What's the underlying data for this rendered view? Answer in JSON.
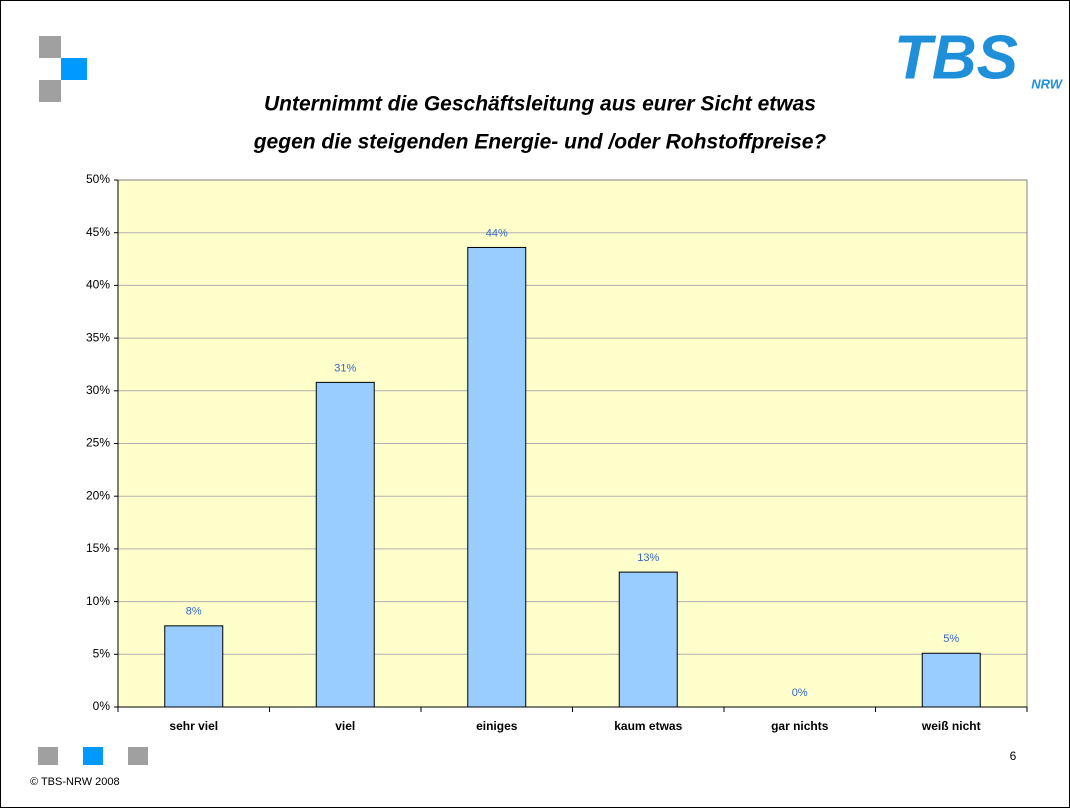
{
  "chart_data": {
    "type": "bar",
    "title": [
      "Unternimmt die Geschäftsleitung aus eurer Sicht etwas",
      "gegen die steigenden Energie- und /oder Rohstoffpreise?"
    ],
    "categories": [
      "sehr viel",
      "viel",
      "einiges",
      "kaum etwas",
      "gar nichts",
      "weiß nicht"
    ],
    "values": [
      7.7,
      30.8,
      43.6,
      12.8,
      0,
      5.1
    ],
    "value_labels": [
      "8%",
      "31%",
      "44%",
      "13%",
      "0%",
      "5%"
    ],
    "color": "#99ccff",
    "ylim": [
      0,
      50
    ],
    "yticks": [
      {
        "value": 0,
        "label": "0%"
      },
      {
        "value": 5,
        "label": "5%"
      },
      {
        "value": 10,
        "label": "10%"
      },
      {
        "value": 15,
        "label": "15%"
      },
      {
        "value": 20,
        "label": "20%"
      },
      {
        "value": 25,
        "label": "25%"
      },
      {
        "value": 30,
        "label": "30%"
      },
      {
        "value": 35,
        "label": "35%"
      },
      {
        "value": 40,
        "label": "40%"
      },
      {
        "value": 45,
        "label": "45%"
      },
      {
        "value": 50,
        "label": "50%"
      }
    ],
    "grid": true
  },
  "slide": {
    "logo": "TBS",
    "logo_sub": "NRW",
    "footer": "© TBS-NRW 2008",
    "page_number": 6
  }
}
